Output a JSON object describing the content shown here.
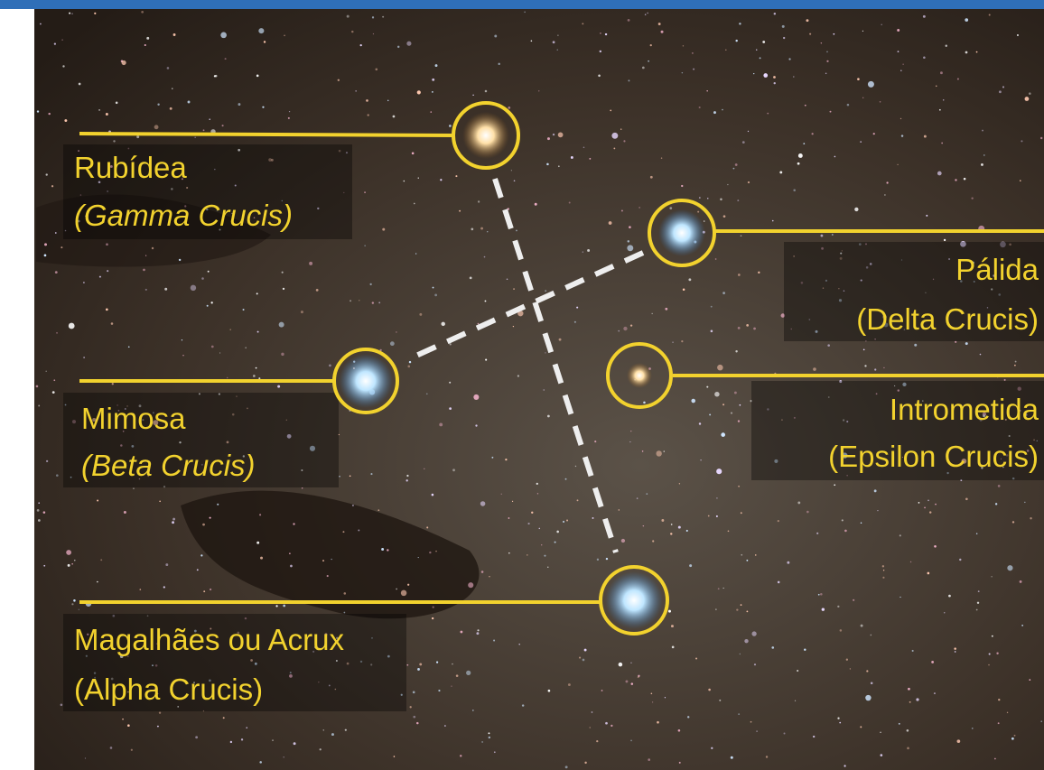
{
  "stars": [
    {
      "name": "Rubídea",
      "designation": "(Gamma Crucis)",
      "italic": true
    },
    {
      "name": "Pálida",
      "designation": "(Delta Crucis)",
      "italic": false
    },
    {
      "name": "Mimosa",
      "designation": "(Beta Crucis)",
      "italic": true
    },
    {
      "name": "Intrometida",
      "designation": "(Epsilon Crucis)",
      "italic": false
    },
    {
      "name": "Magalhães ou Acrux",
      "designation": "(Alpha Crucis)",
      "italic": false
    }
  ]
}
